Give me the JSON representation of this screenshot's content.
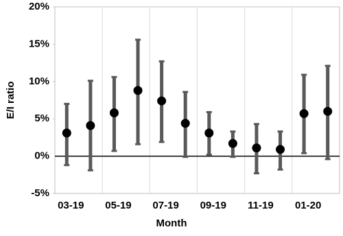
{
  "chart_data": {
    "type": "errorbar",
    "x_label": "Month",
    "y_label": "E/I ratio",
    "categories": [
      "03-19",
      null,
      "05-19",
      null,
      "07-19",
      null,
      "09-19",
      null,
      "11-19",
      null,
      "01-20",
      null
    ],
    "values": [
      3.1,
      4.1,
      5.8,
      8.8,
      7.4,
      4.4,
      3.1,
      1.7,
      1.1,
      0.9,
      5.7,
      6.0
    ],
    "error_low": [
      -1.2,
      -1.9,
      0.7,
      1.6,
      1.9,
      -0.1,
      0.2,
      -0.1,
      -2.3,
      -1.8,
      0.4,
      -0.4
    ],
    "error_high": [
      7.0,
      10.1,
      10.6,
      15.6,
      12.7,
      8.6,
      5.9,
      3.3,
      4.3,
      3.3,
      10.9,
      12.1
    ],
    "color": "#000000",
    "error_color": "#595959",
    "ylim": [
      -5,
      20
    ],
    "yticks": [
      {
        "value": -5,
        "label": "-5%"
      },
      {
        "value": 0,
        "label": "0%"
      },
      {
        "value": 5,
        "label": "5%"
      },
      {
        "value": 10,
        "label": "10%"
      },
      {
        "value": 15,
        "label": "15%"
      },
      {
        "value": 20,
        "label": "20%"
      }
    ],
    "grid": true
  }
}
